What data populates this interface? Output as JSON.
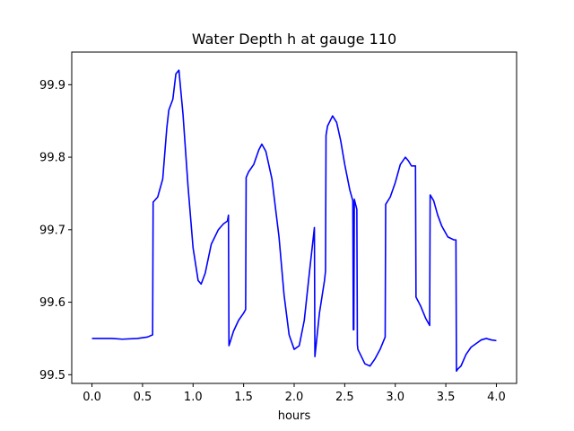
{
  "chart_data": {
    "type": "line",
    "title": "Water Depth h at gauge 110",
    "xlabel": "hours",
    "ylabel": "",
    "xlim": [
      -0.2,
      4.2
    ],
    "ylim": [
      99.488,
      99.945
    ],
    "xticks": [
      0.0,
      0.5,
      1.0,
      1.5,
      2.0,
      2.5,
      3.0,
      3.5,
      4.0
    ],
    "xtick_labels": [
      "0.0",
      "0.5",
      "1.0",
      "1.5",
      "2.0",
      "2.5",
      "3.0",
      "3.5",
      "4.0"
    ],
    "yticks": [
      99.5,
      99.6,
      99.7,
      99.8,
      99.9
    ],
    "ytick_labels": [
      "99.5",
      "99.6",
      "99.7",
      "99.8",
      "99.9"
    ],
    "grid": false,
    "series": [
      {
        "color": "#0000ff",
        "x": [
          0.0,
          0.2,
          0.3,
          0.45,
          0.55,
          0.6,
          0.605,
          0.65,
          0.7,
          0.74,
          0.76,
          0.8,
          0.83,
          0.86,
          0.9,
          0.95,
          1.0,
          1.05,
          1.08,
          1.12,
          1.18,
          1.25,
          1.3,
          1.34,
          1.35,
          1.355,
          1.4,
          1.45,
          1.5,
          1.52,
          1.525,
          1.55,
          1.6,
          1.65,
          1.68,
          1.72,
          1.78,
          1.85,
          1.9,
          1.95,
          2.0,
          2.05,
          2.1,
          2.15,
          2.2,
          2.205,
          2.25,
          2.3,
          2.31,
          2.315,
          2.33,
          2.38,
          2.42,
          2.46,
          2.5,
          2.55,
          2.58,
          2.585,
          2.59,
          2.595,
          2.62,
          2.625,
          2.63,
          2.7,
          2.75,
          2.8,
          2.85,
          2.9,
          2.905,
          2.95,
          3.0,
          3.05,
          3.1,
          3.13,
          3.16,
          3.2,
          3.205,
          3.25,
          3.3,
          3.34,
          3.345,
          3.38,
          3.42,
          3.46,
          3.52,
          3.58,
          3.6,
          3.605,
          3.62,
          3.65,
          3.7,
          3.75,
          3.8,
          3.85,
          3.9,
          3.95,
          4.0
        ],
        "values": [
          99.55,
          99.55,
          99.549,
          99.55,
          99.552,
          99.555,
          99.738,
          99.745,
          99.77,
          99.84,
          99.865,
          99.88,
          99.915,
          99.92,
          99.86,
          99.76,
          99.675,
          99.63,
          99.625,
          99.64,
          99.68,
          99.7,
          99.708,
          99.712,
          99.72,
          99.54,
          99.56,
          99.575,
          99.585,
          99.59,
          99.772,
          99.78,
          99.79,
          99.81,
          99.818,
          99.808,
          99.77,
          99.69,
          99.61,
          99.555,
          99.535,
          99.54,
          99.575,
          99.64,
          99.703,
          99.525,
          99.585,
          99.63,
          99.643,
          99.83,
          99.843,
          99.857,
          99.848,
          99.823,
          99.79,
          99.755,
          99.74,
          99.562,
          99.562,
          99.742,
          99.728,
          99.542,
          99.535,
          99.515,
          99.512,
          99.522,
          99.535,
          99.552,
          99.735,
          99.745,
          99.765,
          99.79,
          99.8,
          99.795,
          99.788,
          99.788,
          99.607,
          99.595,
          99.578,
          99.568,
          99.748,
          99.74,
          99.72,
          99.705,
          99.69,
          99.686,
          99.686,
          99.505,
          99.508,
          99.512,
          99.528,
          99.538,
          99.543,
          99.548,
          99.55,
          99.548,
          99.547
        ]
      }
    ]
  }
}
